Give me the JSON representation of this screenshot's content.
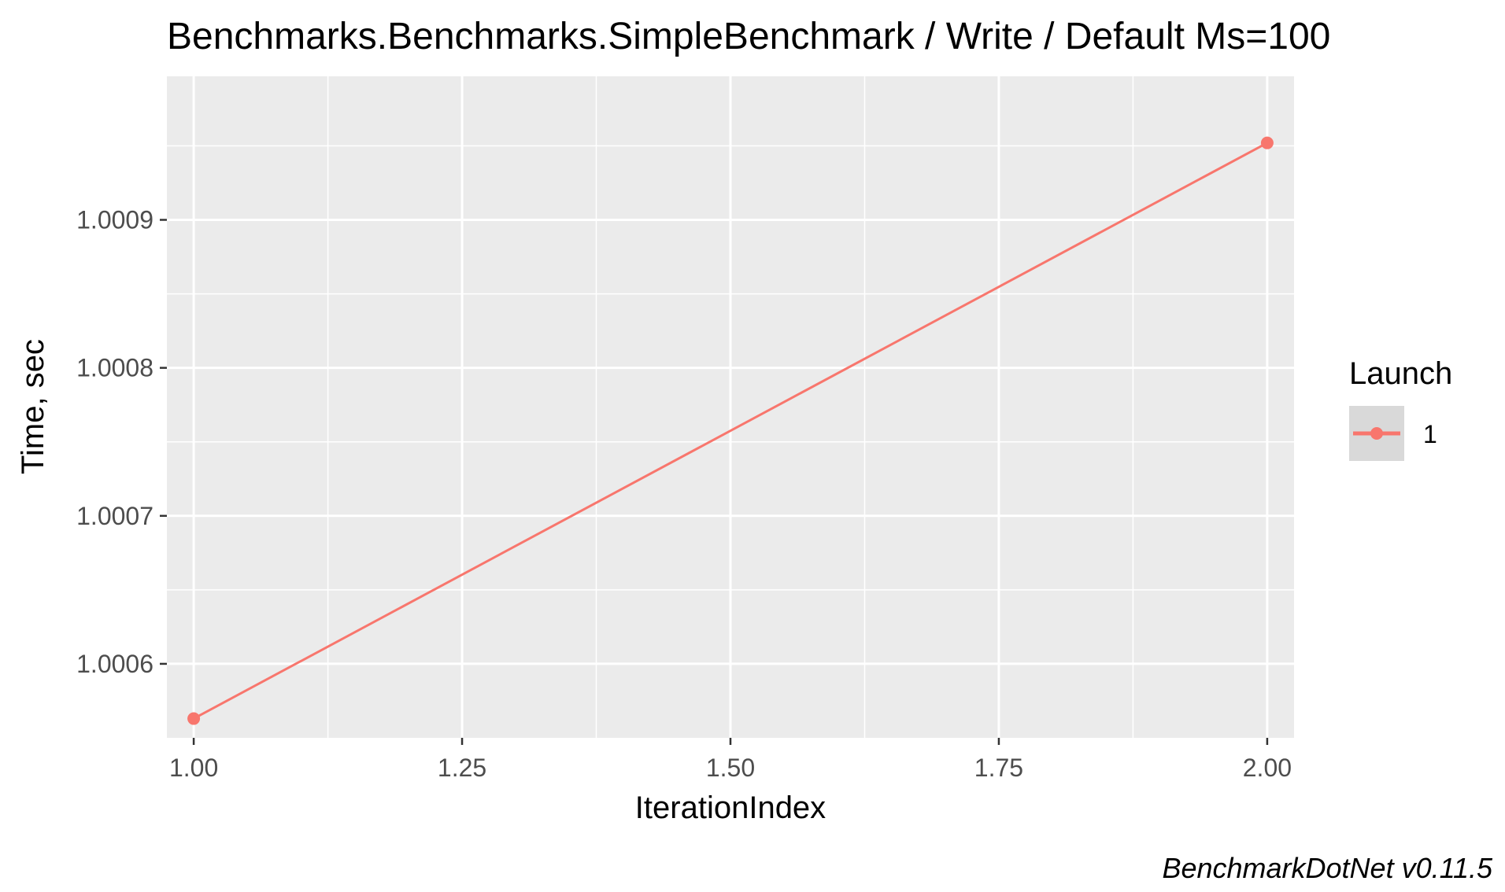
{
  "chart_data": {
    "type": "line",
    "title": "Benchmarks.Benchmarks.SimpleBenchmark / Write / Default Ms=100",
    "xlabel": "IterationIndex",
    "ylabel": "Time, sec",
    "x_ticks": [
      "1.00",
      "1.25",
      "1.50",
      "1.75",
      "2.00"
    ],
    "x_tick_values": [
      1.0,
      1.25,
      1.5,
      1.75,
      2.0
    ],
    "y_ticks": [
      "1.0006",
      "1.0007",
      "1.0008",
      "1.0009"
    ],
    "y_tick_values": [
      1.0006,
      1.0007,
      1.0008,
      1.0009
    ],
    "xlim": [
      0.975,
      2.025
    ],
    "ylim": [
      1.00055,
      1.000997
    ],
    "grid": true,
    "legend": {
      "title": "Launch",
      "position": "right",
      "entries": [
        {
          "label": "1",
          "color": "#F8766D"
        }
      ]
    },
    "series": [
      {
        "name": "1",
        "color": "#F8766D",
        "x": [
          1,
          2
        ],
        "y": [
          1.000563,
          1.000952
        ]
      }
    ],
    "caption": "BenchmarkDotNet v0.11.5",
    "colors": {
      "panel_background": "#EBEBEB",
      "grid_major": "#FFFFFF",
      "tick_text": "#4D4D4D"
    }
  }
}
